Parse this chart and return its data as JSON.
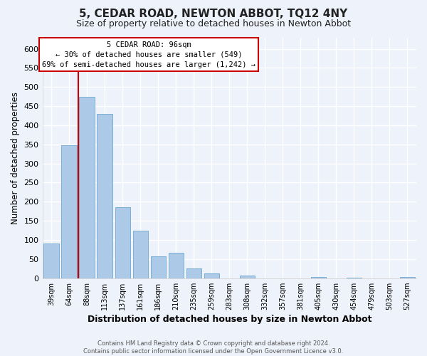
{
  "title": "5, CEDAR ROAD, NEWTON ABBOT, TQ12 4NY",
  "subtitle": "Size of property relative to detached houses in Newton Abbot",
  "xlabel": "Distribution of detached houses by size in Newton Abbot",
  "ylabel": "Number of detached properties",
  "bar_labels": [
    "39sqm",
    "64sqm",
    "88sqm",
    "113sqm",
    "137sqm",
    "161sqm",
    "186sqm",
    "210sqm",
    "235sqm",
    "259sqm",
    "283sqm",
    "308sqm",
    "332sqm",
    "357sqm",
    "381sqm",
    "405sqm",
    "430sqm",
    "454sqm",
    "479sqm",
    "503sqm",
    "527sqm"
  ],
  "bar_values": [
    90,
    348,
    475,
    430,
    185,
    125,
    57,
    67,
    25,
    13,
    0,
    6,
    0,
    0,
    0,
    4,
    0,
    2,
    0,
    0,
    3
  ],
  "bar_color": "#adc9e8",
  "bar_edge_color": "#7aafd4",
  "vline_x": 1.5,
  "vline_color": "#cc0000",
  "ylim": [
    0,
    630
  ],
  "yticks": [
    0,
    50,
    100,
    150,
    200,
    250,
    300,
    350,
    400,
    450,
    500,
    550,
    600
  ],
  "annotation_line1": "5 CEDAR ROAD: 96sqm",
  "annotation_line2": "← 30% of detached houses are smaller (549)",
  "annotation_line3": "69% of semi-detached houses are larger (1,242) →",
  "footnote": "Contains HM Land Registry data © Crown copyright and database right 2024.\nContains public sector information licensed under the Open Government Licence v3.0.",
  "bg_color": "#eef2fb",
  "grid_color": "#ffffff",
  "title_fontsize": 11,
  "subtitle_fontsize": 9,
  "xlabel_fontsize": 9,
  "ylabel_fontsize": 8.5
}
